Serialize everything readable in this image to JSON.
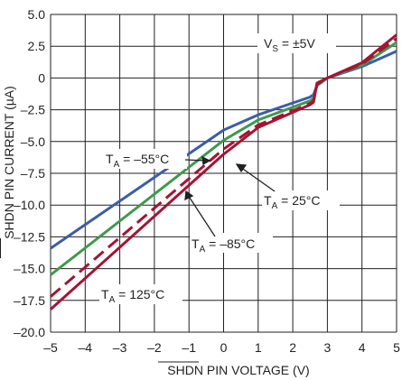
{
  "chart_data": {
    "type": "line",
    "xlabel": "SHDN PIN VOLTAGE (V)",
    "ylabel": "SHDN PIN CURRENT (µA)",
    "xlim": [
      -5,
      5
    ],
    "ylim": [
      -20,
      5
    ],
    "xticks": [
      -5,
      -4,
      -3,
      -2,
      -1,
      0,
      1,
      2,
      3,
      4,
      5
    ],
    "yticks": [
      5.0,
      2.5,
      0,
      -2.5,
      -5.0,
      -7.5,
      -10.0,
      -12.5,
      -15.0,
      -17.5,
      -20.0
    ],
    "xtick_labels": [
      "–5",
      "–4",
      "–3",
      "–2",
      "–1",
      "0",
      "1",
      "2",
      "3",
      "4",
      "5"
    ],
    "ytick_labels": [
      "5.0",
      "2.5",
      "0",
      "–2.5",
      "–5.0",
      "–7.5",
      "–10.0",
      "–12.5",
      "–15.0",
      "–17.5",
      "–20.0"
    ],
    "grid": true,
    "series": [
      {
        "name": "TA = −55°C",
        "color": "#3c5da8",
        "dash": "solid",
        "points": [
          [
            -5,
            -13.4
          ],
          [
            0,
            -4.1
          ],
          [
            1,
            -2.9
          ],
          [
            2.5,
            -1.5
          ],
          [
            2.6,
            -1.3
          ],
          [
            2.7,
            -0.6
          ],
          [
            3,
            0
          ],
          [
            4,
            0.9
          ],
          [
            5,
            2.1
          ]
        ]
      },
      {
        "name": "TA = 25°C",
        "color": "#3f9a4e",
        "dash": "solid",
        "points": [
          [
            -5,
            -15.5
          ],
          [
            0,
            -4.9
          ],
          [
            1,
            -3.3
          ],
          [
            2.5,
            -1.8
          ],
          [
            2.6,
            -1.6
          ],
          [
            2.7,
            -0.6
          ],
          [
            3,
            0
          ],
          [
            4,
            1.0
          ],
          [
            5,
            2.8
          ]
        ]
      },
      {
        "name": "TA = −85°C",
        "color": "#a51433",
        "dash": "dashed",
        "points": [
          [
            -5,
            -17.2
          ],
          [
            0,
            -5.6
          ],
          [
            1,
            -3.7
          ],
          [
            2.5,
            -2.0
          ],
          [
            2.6,
            -1.8
          ],
          [
            2.7,
            -0.5
          ],
          [
            3,
            0
          ],
          [
            4,
            1.1
          ],
          [
            5,
            3.1
          ]
        ]
      },
      {
        "name": "TA = 125°C",
        "color": "#a51433",
        "dash": "solid",
        "points": [
          [
            -5,
            -18.2
          ],
          [
            0,
            -6.0
          ],
          [
            1,
            -3.9
          ],
          [
            2.5,
            -2.1
          ],
          [
            2.6,
            -1.9
          ],
          [
            2.7,
            -0.4
          ],
          [
            3,
            0
          ],
          [
            4,
            1.2
          ],
          [
            5,
            3.4
          ]
        ]
      }
    ]
  },
  "annotations": {
    "vs_label": "VS = ±5V",
    "ta_m55": "TA = –55°C",
    "ta_25": "TA = 25°C",
    "ta_m85": "TA = –85°C",
    "ta_125": "TA = 125°C"
  }
}
